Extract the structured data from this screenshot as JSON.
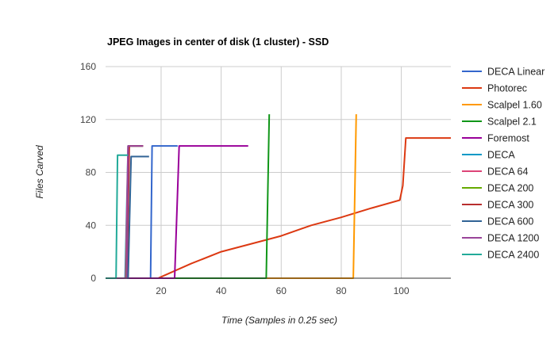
{
  "chart_data": {
    "type": "line",
    "title": "JPEG Images in center of disk (1 cluster) - SSD",
    "xlabel": "Time (Samples in 0.25 sec)",
    "ylabel": "Files Carved",
    "xlim": [
      1.5,
      116.5
    ],
    "ylim": [
      0,
      160
    ],
    "x_ticks": [
      20,
      40,
      60,
      80,
      100
    ],
    "y_ticks": [
      0,
      40,
      80,
      120,
      160
    ],
    "x_tick_labels": [
      "20",
      "40",
      "60",
      "80",
      "100"
    ],
    "y_tick_labels": [
      "0",
      "40",
      "80",
      "120",
      "160"
    ],
    "grid": true,
    "legend_position": "right",
    "series": [
      {
        "name": "DECA Linear",
        "color": "#3366cc",
        "x": [
          1.5,
          16.5,
          17,
          25.5
        ],
        "y": [
          0,
          0,
          100,
          100
        ]
      },
      {
        "name": "Photorec",
        "color": "#dc3912",
        "x": [
          1.5,
          19,
          20,
          30,
          40,
          50,
          60,
          70,
          80,
          90,
          99.5,
          100.5,
          101.5,
          116.5
        ],
        "y": [
          0,
          0,
          1,
          11,
          20,
          26,
          32,
          40,
          46,
          53,
          59,
          70,
          106,
          106
        ]
      },
      {
        "name": "Scalpel 1.60",
        "color": "#ff9900",
        "x": [
          1.5,
          84,
          85
        ],
        "y": [
          0,
          0,
          124
        ]
      },
      {
        "name": "Scalpel 2.1",
        "color": "#109618",
        "x": [
          1.5,
          55,
          56
        ],
        "y": [
          0,
          0,
          124
        ]
      },
      {
        "name": "Foremost",
        "color": "#990099",
        "x": [
          1.5,
          24.5,
          26,
          49
        ],
        "y": [
          0,
          0,
          100,
          100
        ]
      },
      {
        "name": "DECA",
        "color": "#0099c6",
        "x": [
          1.5,
          8,
          9,
          14
        ],
        "y": [
          0,
          0,
          100,
          100
        ]
      },
      {
        "name": "DECA 64",
        "color": "#dd4477",
        "x": [
          1.5,
          8.2,
          9,
          14
        ],
        "y": [
          0,
          0,
          100,
          100
        ]
      },
      {
        "name": "DECA 200",
        "color": "#66aa00",
        "x": [
          1.5,
          8.4,
          9.2,
          14
        ],
        "y": [
          0,
          0,
          100,
          100
        ]
      },
      {
        "name": "DECA 300",
        "color": "#b82e2e",
        "x": [
          1.5,
          8.6,
          9.4,
          14
        ],
        "y": [
          0,
          0,
          100,
          100
        ]
      },
      {
        "name": "DECA 600",
        "color": "#316395",
        "x": [
          1.5,
          9,
          10,
          16
        ],
        "y": [
          0,
          0,
          92,
          92
        ]
      },
      {
        "name": "DECA 1200",
        "color": "#994499",
        "x": [
          1.5,
          8.5,
          9,
          14
        ],
        "y": [
          0,
          0,
          100,
          100
        ]
      },
      {
        "name": "DECA 2400",
        "color": "#22aa99",
        "x": [
          1.5,
          5,
          5.5,
          9
        ],
        "y": [
          0,
          0,
          93,
          93
        ]
      }
    ]
  }
}
